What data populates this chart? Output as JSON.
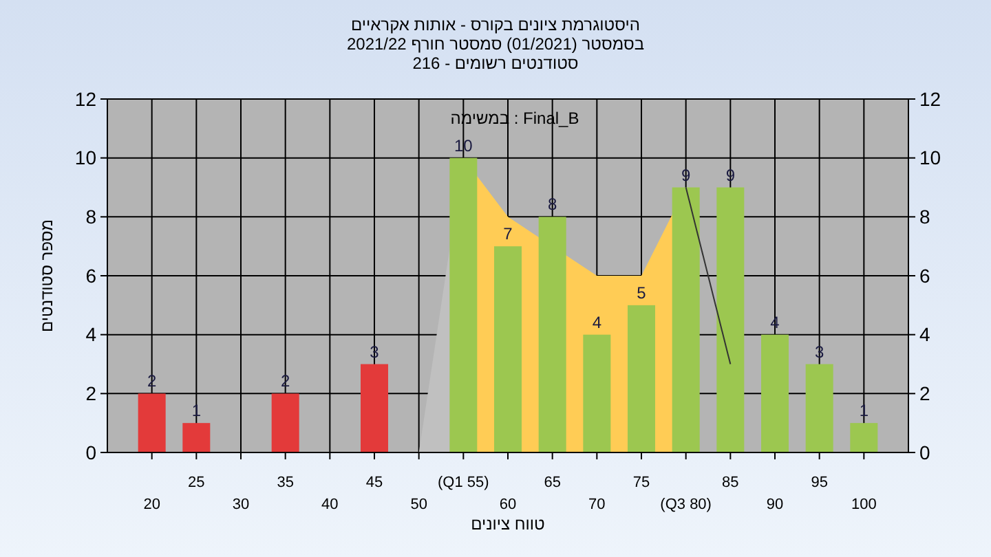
{
  "chart_data": {
    "type": "bar",
    "title": "היסטוגרמת ציונים בקורס - אותות אקראיים",
    "subtitle": "בסמסטר  (01/2021)  סמסטר חורף 2021/22\nסטודנטים רשומים - 216",
    "annotations": [
      "במשימה : Final_B"
    ],
    "xlabel": "טווח ציונים",
    "ylabel": "מספר סטודנטים",
    "categories": [
      "20",
      "25",
      "30",
      "35",
      "40",
      "45",
      "50",
      "(Q1 55)",
      "60",
      "65",
      "70",
      "75",
      "(Q3 80)",
      "85",
      "90",
      "95",
      "100"
    ],
    "series": [
      {
        "type": "area",
        "color": "#c0c0c0",
        "values": [
          null,
          null,
          null,
          null,
          null,
          null,
          0,
          10,
          null,
          null,
          null,
          null,
          null,
          null,
          null,
          null,
          null
        ]
      },
      {
        "type": "area",
        "color": "#ffcc55",
        "values": [
          null,
          null,
          null,
          null,
          null,
          null,
          null,
          10,
          8,
          null,
          6,
          6,
          9,
          null,
          null,
          null,
          null
        ]
      },
      {
        "colors": [
          "#e33a3a",
          "#e33a3a",
          "#e33a3a",
          "#e33a3a",
          "#e33a3a",
          "#e33a3a",
          "#e33a3a",
          "#9cc750",
          "#9cc750",
          "#9cc750",
          "#9cc750",
          "#9cc750",
          "#9cc750",
          "#9cc750",
          "#9cc750",
          "#9cc750",
          "#9cc750"
        ],
        "values": [
          2,
          1,
          0,
          2,
          0,
          3,
          0,
          10,
          7,
          8,
          4,
          5,
          9,
          9,
          4,
          3,
          1
        ],
        "value_labels": [
          "2",
          "1",
          null,
          "2",
          null,
          "3",
          null,
          "10",
          "7",
          "8",
          "4",
          "5",
          "9",
          "9",
          "4",
          "3",
          "1"
        ]
      },
      {
        "type": "line",
        "color": "#333333",
        "values": [
          null,
          null,
          null,
          null,
          null,
          null,
          null,
          null,
          null,
          null,
          null,
          null,
          9,
          3,
          null,
          null,
          null
        ]
      }
    ],
    "ylim": [
      0,
      12
    ],
    "yticks": [
      0,
      2,
      4,
      6,
      8,
      10,
      12
    ],
    "y2lim": [
      0,
      12
    ],
    "y2ticks": [
      0,
      2,
      4,
      6,
      8,
      10,
      12
    ],
    "grid": true
  }
}
